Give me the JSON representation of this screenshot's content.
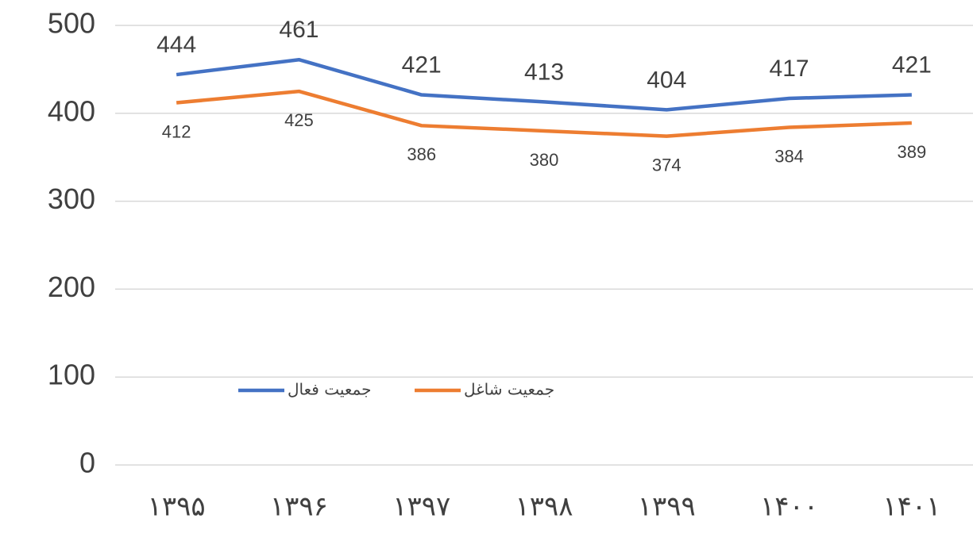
{
  "chart_data": {
    "type": "line",
    "categories": [
      "۱۳۹۵",
      "۱۳۹۶",
      "۱۳۹۷",
      "۱۳۹۸",
      "۱۳۹۹",
      "۱۴۰۰",
      "۱۴۰۱"
    ],
    "series": [
      {
        "name": "جمعیت فعال",
        "color": "#4472c4",
        "values": [
          444,
          461,
          421,
          413,
          404,
          417,
          421
        ]
      },
      {
        "name": "جمعیت شاغل",
        "color": "#ed7d31",
        "values": [
          412,
          425,
          386,
          380,
          374,
          384,
          389
        ]
      }
    ],
    "ylim": [
      0,
      500
    ],
    "yticks": [
      0,
      100,
      200,
      300,
      400,
      500
    ],
    "grid": true
  }
}
